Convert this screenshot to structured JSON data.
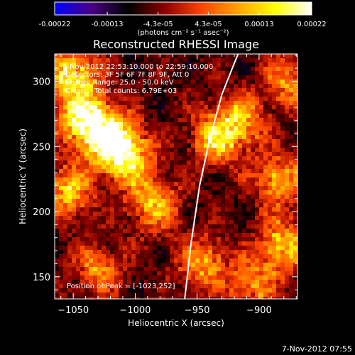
{
  "chart_data": {
    "type": "heatmap",
    "title": "Reconstructed RHESSI Image",
    "xlabel": "Heliocentric X (arcsec)",
    "ylabel": "Heliocentric Y (arcsec)",
    "xlim": [
      -1065,
      -869
    ],
    "ylim": [
      133,
      321
    ],
    "x_ticks": [
      -1050,
      -1000,
      -950,
      -900
    ],
    "y_ticks": [
      150,
      200,
      250,
      300
    ],
    "colorbar": {
      "ticks": [
        "-0.00022",
        "-0.00013",
        "-4.3e-05",
        "4.3e-05",
        "0.00013",
        "0.00022"
      ],
      "tick_values": [
        -0.00022,
        -0.00013,
        -4.3e-05,
        4.3e-05,
        0.00013,
        0.00022
      ],
      "range": [
        -0.00022,
        0.00022
      ],
      "units": "(photons cm⁻² s⁻¹ asec⁻²)",
      "stops": [
        "#0000ff",
        "#4b0082",
        "#000000",
        "#8b0000",
        "#ff4500",
        "#ffa500",
        "#ffff00",
        "#ffffff"
      ]
    },
    "info": {
      "time_range": "6-Nov-2012 22:53:10.000 to 22:59:10.000",
      "detectors": "Detectors: 3F 5F 6F 7F 8F 9F, Att 0",
      "energy": "Energy Range: 25.0 - 50.0 keV",
      "method": "Clean    Total counts: 6.79E+03",
      "peak": "Position of Peak = [-1023,252]"
    },
    "peak": {
      "x": -1023,
      "y": 252
    },
    "limb_curve": [
      [
        -960,
        133
      ],
      [
        -955,
        175
      ],
      [
        -948,
        220
      ],
      [
        -940,
        255
      ],
      [
        -930,
        290
      ],
      [
        -917,
        321
      ]
    ],
    "bright_regions": [
      {
        "x": -1040,
        "y": 270,
        "intensity": 0.00022
      },
      {
        "x": -1020,
        "y": 255,
        "intensity": 0.0002
      },
      {
        "x": -1050,
        "y": 305,
        "intensity": 0.00016
      },
      {
        "x": -1005,
        "y": 240,
        "intensity": 0.00014
      },
      {
        "x": -1055,
        "y": 215,
        "intensity": 0.00012
      },
      {
        "x": -985,
        "y": 205,
        "intensity": 0.00011
      },
      {
        "x": -935,
        "y": 255,
        "intensity": 0.00012
      },
      {
        "x": -915,
        "y": 270,
        "intensity": 0.0001
      },
      {
        "x": -885,
        "y": 225,
        "intensity": 0.0001
      },
      {
        "x": -880,
        "y": 175,
        "intensity": 0.00012
      },
      {
        "x": -875,
        "y": 300,
        "intensity": 8e-05
      },
      {
        "x": -945,
        "y": 160,
        "intensity": 9e-05
      },
      {
        "x": -1030,
        "y": 155,
        "intensity": 7e-05
      },
      {
        "x": -905,
        "y": 145,
        "intensity": 8e-05
      }
    ]
  },
  "footer": {
    "timestamp": "7-Nov-2012 07:55"
  }
}
